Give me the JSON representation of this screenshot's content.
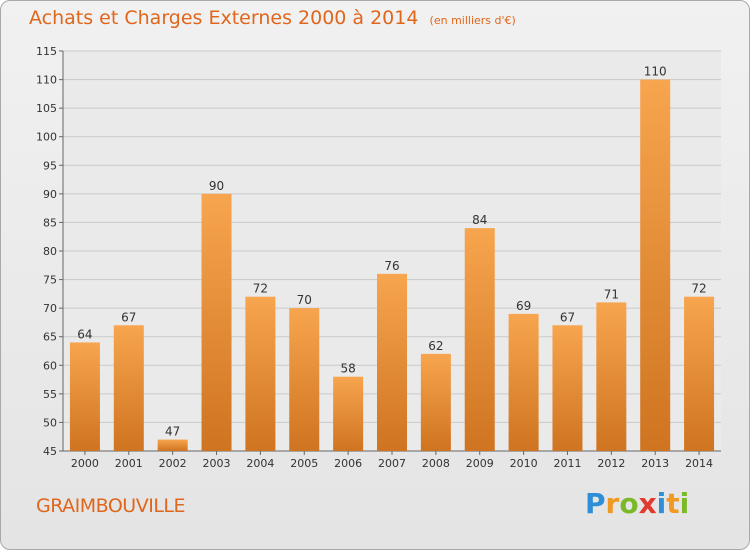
{
  "title": "Achats et Charges Externes 2000 à 2014",
  "unit_note": "(en milliers d'€)",
  "commune": "GRAIMBOUVILLE",
  "logo": {
    "text": "Proxiti",
    "letters": [
      "P",
      "r",
      "o",
      "x",
      "i",
      "t",
      "i"
    ],
    "colors": [
      "#2f8fd6",
      "#f19a23",
      "#7bb928",
      "#e23a2e",
      "#2f8fd6",
      "#f19a23",
      "#7bb928"
    ]
  },
  "colors": {
    "accent": "#e0661b",
    "bar_top": "#f7a54e",
    "bar_bottom": "#cf7420",
    "grid": "#c9c9c9"
  },
  "chart_data": {
    "type": "bar",
    "categories": [
      "2000",
      "2001",
      "2002",
      "2003",
      "2004",
      "2005",
      "2006",
      "2007",
      "2008",
      "2009",
      "2010",
      "2011",
      "2012",
      "2013",
      "2014"
    ],
    "values": [
      64,
      67,
      47,
      90,
      72,
      70,
      58,
      76,
      62,
      84,
      69,
      67,
      71,
      110,
      72
    ],
    "ylim": [
      45,
      115
    ],
    "yticks": [
      45,
      50,
      55,
      60,
      65,
      70,
      75,
      80,
      85,
      90,
      95,
      100,
      105,
      110,
      115
    ],
    "grid": true,
    "data_labels": true
  }
}
